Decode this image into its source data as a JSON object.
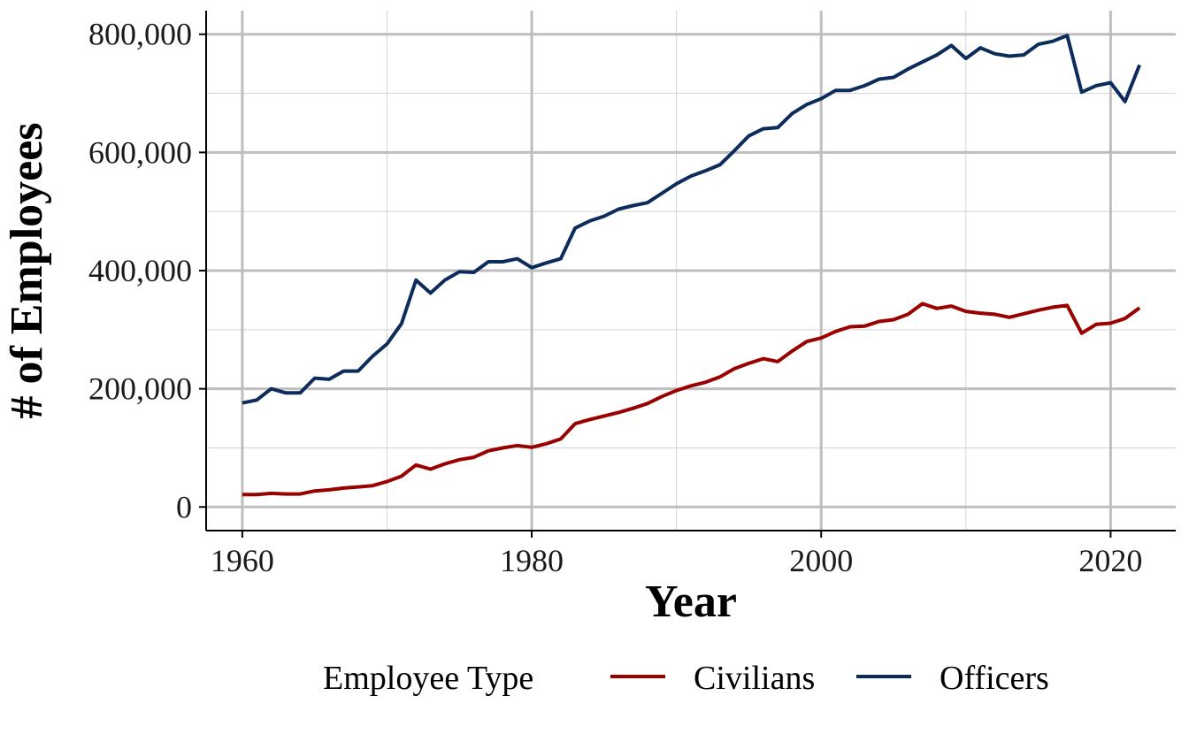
{
  "chart_data": {
    "type": "line",
    "xlabel": "Year",
    "ylabel": "# of Employees",
    "xlim": [
      1957.5,
      2024.5
    ],
    "ylim": [
      -40000,
      840000
    ],
    "x_ticks": [
      1960,
      1980,
      2000,
      2020
    ],
    "x_tick_labels": [
      "1960",
      "1980",
      "2000",
      "2020"
    ],
    "y_ticks": [
      0,
      200000,
      400000,
      600000,
      800000
    ],
    "y_tick_labels": [
      "0",
      "200,000",
      "400,000",
      "600,000",
      "800,000"
    ],
    "grid": true,
    "legend": {
      "title": "Employee Type",
      "position": "bottom"
    },
    "x": [
      1960,
      1961,
      1962,
      1963,
      1964,
      1965,
      1966,
      1967,
      1968,
      1969,
      1970,
      1971,
      1972,
      1973,
      1974,
      1975,
      1976,
      1977,
      1978,
      1979,
      1980,
      1981,
      1982,
      1983,
      1984,
      1985,
      1986,
      1987,
      1988,
      1989,
      1990,
      1991,
      1992,
      1993,
      1994,
      1995,
      1996,
      1997,
      1998,
      1999,
      2000,
      2001,
      2002,
      2003,
      2004,
      2005,
      2006,
      2007,
      2008,
      2009,
      2010,
      2011,
      2012,
      2013,
      2014,
      2015,
      2016,
      2017,
      2018,
      2019,
      2020,
      2021,
      2022
    ],
    "series": [
      {
        "name": "Civilians",
        "color": "#990000",
        "values": [
          21000,
          21000,
          23000,
          22000,
          22000,
          27000,
          29000,
          32000,
          34000,
          36000,
          43000,
          52000,
          71000,
          64000,
          73000,
          80000,
          84000,
          95000,
          100000,
          104000,
          101000,
          107000,
          115000,
          141000,
          148000,
          154000,
          160000,
          167000,
          175000,
          187000,
          197000,
          205000,
          211000,
          220000,
          234000,
          243000,
          251000,
          246000,
          264000,
          280000,
          286000,
          297000,
          305000,
          306000,
          314000,
          317000,
          326000,
          344000,
          336000,
          340000,
          331000,
          328000,
          326000,
          321000,
          327000,
          333000,
          338000,
          341000,
          294000,
          309000,
          311000,
          319000,
          337000
        ]
      },
      {
        "name": "Officers",
        "color": "#0C2C5C",
        "values": [
          176000,
          181000,
          200000,
          193000,
          193000,
          218000,
          216000,
          230000,
          230000,
          255000,
          276000,
          310000,
          384000,
          362000,
          384000,
          398000,
          397000,
          415000,
          415000,
          420000,
          405000,
          413000,
          420000,
          472000,
          484000,
          492000,
          504000,
          510000,
          515000,
          531000,
          547000,
          560000,
          569000,
          579000,
          603000,
          628000,
          640000,
          642000,
          666000,
          681000,
          691000,
          705000,
          705000,
          713000,
          724000,
          727000,
          741000,
          753000,
          765000,
          781000,
          759000,
          777000,
          767000,
          763000,
          765000,
          783000,
          788000,
          798000,
          702000,
          713000,
          718000,
          686000,
          748000
        ]
      }
    ]
  }
}
